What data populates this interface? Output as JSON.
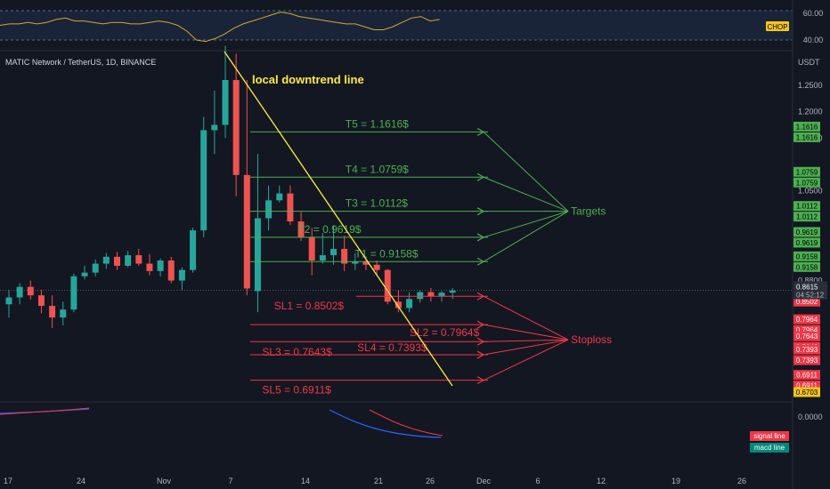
{
  "symbol": "MATIC Network / TetherUS, 1D, BINANCE",
  "currency": "USDT",
  "annotation_title": "local downtrend line",
  "chop": {
    "label": "CHOP",
    "ticks": [
      "60.00",
      "40.00"
    ],
    "values": [
      50,
      51,
      51,
      52,
      51,
      52,
      54,
      55,
      53,
      53,
      52,
      51,
      52,
      52,
      51,
      51,
      52,
      53,
      52,
      50,
      46,
      40,
      39,
      41,
      44,
      48,
      51,
      53,
      55,
      57,
      59,
      58,
      56,
      55,
      54,
      53,
      52,
      51,
      51,
      49,
      47,
      47,
      49,
      52,
      55,
      56,
      53,
      54
    ]
  },
  "price_axis": {
    "ticks": [
      {
        "label": "1.2500",
        "v": 1.25
      },
      {
        "label": "1.2000",
        "v": 1.2
      },
      {
        "label": "1.1500",
        "v": 1.15
      },
      {
        "label": "1.0500",
        "v": 1.05
      },
      {
        "label": "0.8800",
        "v": 0.88
      }
    ]
  },
  "macd": {
    "tick": "0.0000",
    "signal_label": "signal line",
    "macd_label": "macd line"
  },
  "chart_data": {
    "type": "candlestick",
    "x_tick_labels": [
      "17",
      "24",
      "Nov",
      "7",
      "14",
      "21",
      "26",
      "Dec",
      "6",
      "12",
      "19",
      "26"
    ],
    "candles": [
      {
        "o": 0.835,
        "h": 0.862,
        "l": 0.81,
        "c": 0.848
      },
      {
        "o": 0.848,
        "h": 0.875,
        "l": 0.835,
        "c": 0.868
      },
      {
        "o": 0.868,
        "h": 0.88,
        "l": 0.844,
        "c": 0.852
      },
      {
        "o": 0.852,
        "h": 0.862,
        "l": 0.818,
        "c": 0.832
      },
      {
        "o": 0.832,
        "h": 0.852,
        "l": 0.79,
        "c": 0.81
      },
      {
        "o": 0.81,
        "h": 0.84,
        "l": 0.795,
        "c": 0.825
      },
      {
        "o": 0.825,
        "h": 0.893,
        "l": 0.82,
        "c": 0.888
      },
      {
        "o": 0.888,
        "h": 0.908,
        "l": 0.882,
        "c": 0.895
      },
      {
        "o": 0.895,
        "h": 0.92,
        "l": 0.888,
        "c": 0.912
      },
      {
        "o": 0.912,
        "h": 0.932,
        "l": 0.902,
        "c": 0.925
      },
      {
        "o": 0.925,
        "h": 0.934,
        "l": 0.9,
        "c": 0.908
      },
      {
        "o": 0.908,
        "h": 0.936,
        "l": 0.905,
        "c": 0.928
      },
      {
        "o": 0.928,
        "h": 0.94,
        "l": 0.908,
        "c": 0.912
      },
      {
        "o": 0.912,
        "h": 0.93,
        "l": 0.89,
        "c": 0.898
      },
      {
        "o": 0.898,
        "h": 0.922,
        "l": 0.888,
        "c": 0.918
      },
      {
        "o": 0.918,
        "h": 0.925,
        "l": 0.875,
        "c": 0.88
      },
      {
        "o": 0.88,
        "h": 0.905,
        "l": 0.862,
        "c": 0.9
      },
      {
        "o": 0.9,
        "h": 0.98,
        "l": 0.895,
        "c": 0.975
      },
      {
        "o": 0.975,
        "h": 1.19,
        "l": 0.962,
        "c": 1.165
      },
      {
        "o": 1.165,
        "h": 1.24,
        "l": 1.12,
        "c": 1.175
      },
      {
        "o": 1.175,
        "h": 1.325,
        "l": 1.15,
        "c": 1.26
      },
      {
        "o": 1.26,
        "h": 1.31,
        "l": 1.04,
        "c": 1.08
      },
      {
        "o": 1.08,
        "h": 1.26,
        "l": 0.852,
        "c": 0.865
      },
      {
        "o": 0.86,
        "h": 1.12,
        "l": 0.82,
        "c": 0.998
      },
      {
        "o": 0.998,
        "h": 1.06,
        "l": 0.975,
        "c": 1.032
      },
      {
        "o": 1.032,
        "h": 1.06,
        "l": 1.028,
        "c": 1.045
      },
      {
        "o": 1.045,
        "h": 1.06,
        "l": 0.985,
        "c": 0.992
      },
      {
        "o": 0.992,
        "h": 1.01,
        "l": 0.955,
        "c": 0.962
      },
      {
        "o": 0.962,
        "h": 0.98,
        "l": 0.89,
        "c": 0.918
      },
      {
        "o": 0.918,
        "h": 0.97,
        "l": 0.912,
        "c": 0.928
      },
      {
        "o": 0.928,
        "h": 0.985,
        "l": 0.91,
        "c": 0.94
      },
      {
        "o": 0.94,
        "h": 0.965,
        "l": 0.898,
        "c": 0.912
      },
      {
        "o": 0.912,
        "h": 0.932,
        "l": 0.9,
        "c": 0.916
      },
      {
        "o": 0.916,
        "h": 0.925,
        "l": 0.9,
        "c": 0.91
      },
      {
        "o": 0.91,
        "h": 0.918,
        "l": 0.892,
        "c": 0.9
      },
      {
        "o": 0.9,
        "h": 0.902,
        "l": 0.835,
        "c": 0.84
      },
      {
        "o": 0.84,
        "h": 0.862,
        "l": 0.82,
        "c": 0.828
      },
      {
        "o": 0.828,
        "h": 0.858,
        "l": 0.82,
        "c": 0.845
      },
      {
        "o": 0.845,
        "h": 0.862,
        "l": 0.838,
        "c": 0.858
      },
      {
        "o": 0.858,
        "h": 0.866,
        "l": 0.84,
        "c": 0.85
      },
      {
        "o": 0.85,
        "h": 0.86,
        "l": 0.84,
        "c": 0.857
      },
      {
        "o": 0.857,
        "h": 0.866,
        "l": 0.845,
        "c": 0.861
      }
    ],
    "trendline": {
      "label": "local downtrend line"
    },
    "targets": [
      {
        "label": "T5 = 1.1616$",
        "value": 1.1616,
        "tag": "1.1616"
      },
      {
        "label": "T4 = 1.0759$",
        "value": 1.0759,
        "tag": "1.0759"
      },
      {
        "label": "T3 = 1.0112$",
        "value": 1.0112,
        "tag": "1.0112"
      },
      {
        "label": "T2 = 0.9619$",
        "value": 0.9619,
        "tag": "0.9619"
      },
      {
        "label": "T1 = 0.9158$",
        "value": 0.9158,
        "tag": "0.9158"
      }
    ],
    "targets_label": "Targets",
    "stoplosses": [
      {
        "label": "SL1 = 0.8502$",
        "value": 0.8502,
        "tag": "0.8502"
      },
      {
        "label": "SL2 = 0.7964$",
        "value": 0.7964,
        "tag": "0.7964"
      },
      {
        "label": "SL3 = 0.7643$",
        "value": 0.7643,
        "tag": "0.7643"
      },
      {
        "label": "SL4 = 0.7393$",
        "value": 0.7393,
        "tag": "0.7393"
      },
      {
        "label": "SL5 = 0.6911$",
        "value": 0.6911,
        "tag": "0.6911"
      }
    ],
    "stoploss_label": "Stoploss",
    "current_price": {
      "tag": "0.8615",
      "countdown": "04:52:12",
      "value": 0.8615
    },
    "low_tag": "0.6703",
    "colors": {
      "up": "#26a69a",
      "down": "#ef5350",
      "target": "#4caf50",
      "stop": "#f23645",
      "trend": "#ffeb3b",
      "chop": "#d4a72c",
      "signal": "#f23645",
      "macd": "#2962ff"
    }
  }
}
